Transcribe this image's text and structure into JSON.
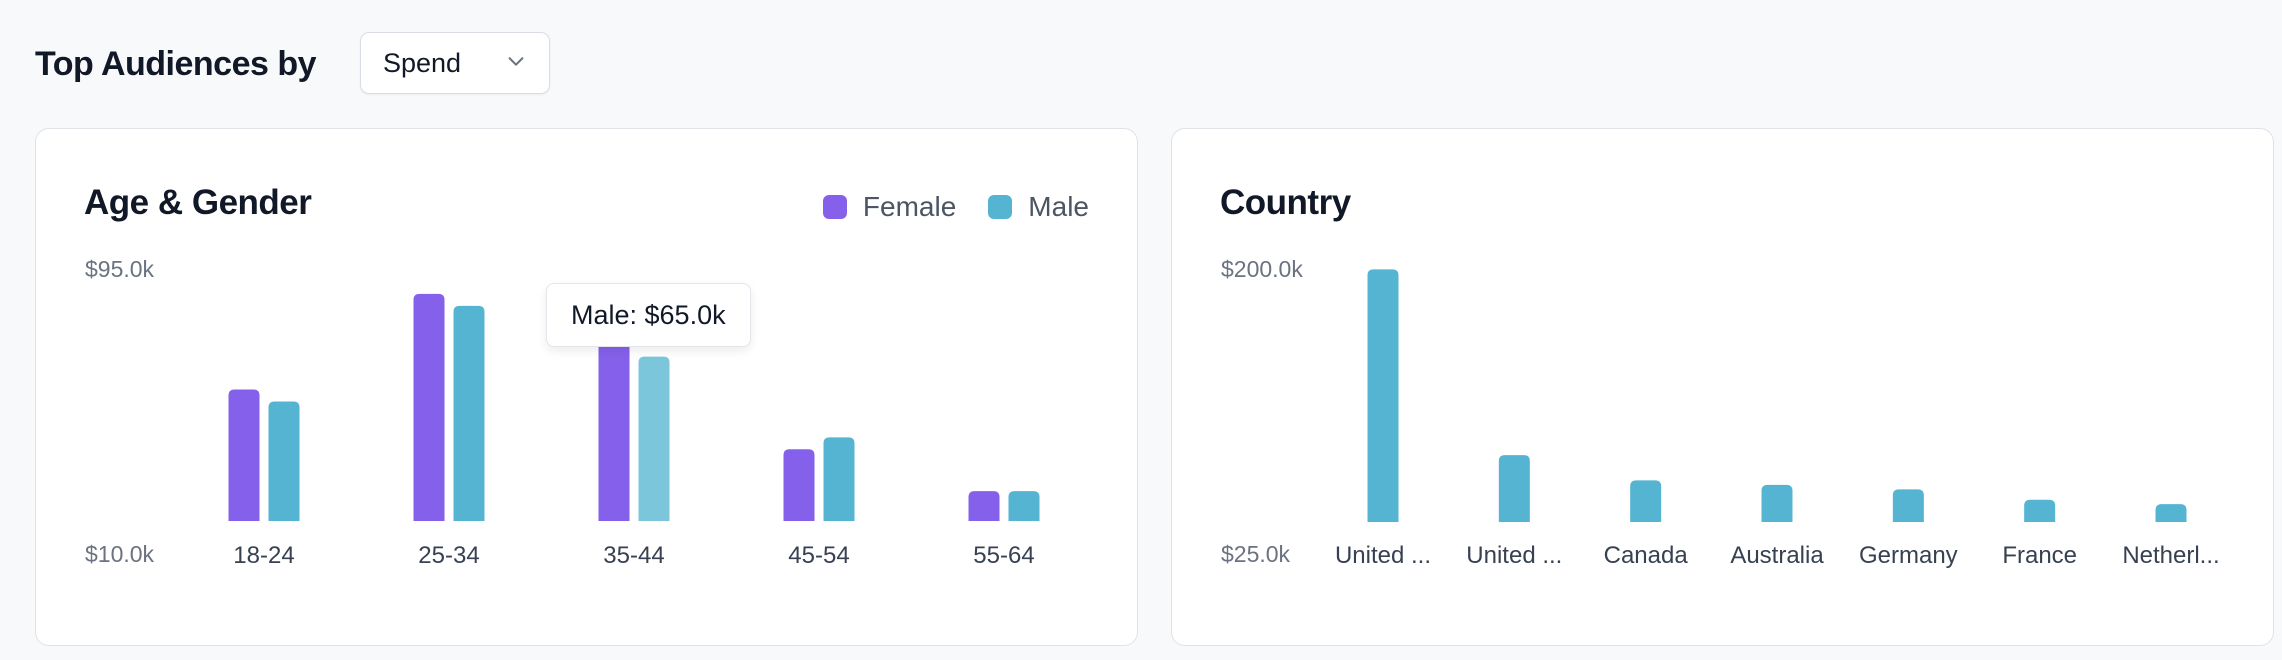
{
  "header": {
    "title": "Top Audiences by"
  },
  "metric_select": {
    "value": "Spend"
  },
  "tooltip": {
    "text": "Male: $65.0k"
  },
  "colors": {
    "female": "#8560ea",
    "male": "#54b4d2",
    "male_hover": "#7cc6dc"
  },
  "icons": {
    "select": "chevron-down-icon"
  },
  "chart_data": [
    {
      "type": "bar",
      "title": "Age & Gender",
      "legend_position": "top-right",
      "grid": false,
      "categories": [
        "18-24",
        "25-34",
        "35-44",
        "45-54",
        "55-64"
      ],
      "series": [
        {
          "name": "Female",
          "values": [
            54,
            86,
            70,
            34,
            20
          ]
        },
        {
          "name": "Male",
          "values": [
            50,
            82,
            65,
            38,
            20
          ]
        }
      ],
      "ylim": [
        10,
        95
      ],
      "yticks": [
        "$95.0k",
        "$10.0k"
      ],
      "highlighted": {
        "series": "Male",
        "category": "35-44"
      }
    },
    {
      "type": "bar",
      "title": "Country",
      "grid": false,
      "categories": [
        "United ...",
        "United ...",
        "Canada",
        "Australia",
        "Germany",
        "France",
        "Netherl..."
      ],
      "series": [
        {
          "values": [
            195,
            70,
            53,
            50,
            47,
            40,
            37
          ]
        }
      ],
      "ylim": [
        25,
        200
      ],
      "yticks": [
        "$200.0k",
        "$25.0k"
      ]
    }
  ]
}
